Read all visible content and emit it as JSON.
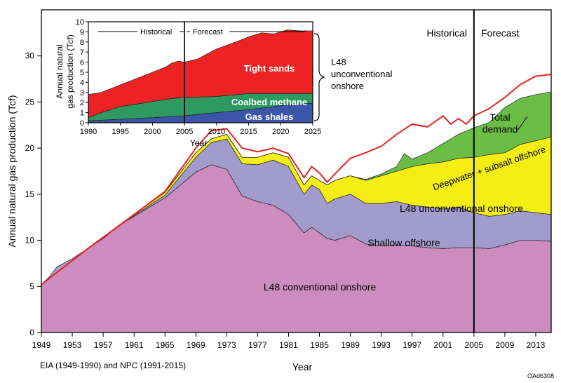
{
  "chart_data": [
    {
      "type": "area",
      "stacked": true,
      "xlabel": "Year",
      "ylabel": "Annual natural gas production (Tcf)",
      "xlim": [
        1949,
        2015
      ],
      "ylim": [
        0,
        35
      ],
      "xticks": [
        1949,
        1953,
        1957,
        1961,
        1965,
        1969,
        1973,
        1977,
        1981,
        1985,
        1989,
        1993,
        1997,
        2001,
        2005,
        2009,
        2013
      ],
      "yticks": [
        0,
        5,
        10,
        15,
        20,
        25,
        30
      ],
      "grid": false,
      "divider_year": 2005,
      "divider_labels": {
        "left": "Historical",
        "right": "Forecast"
      },
      "source_note": "EIA (1949-1990) and NPC (1991-2015)",
      "figure_id": "OAd6308",
      "series": [
        {
          "name": "L48 conventional onshore",
          "color": "#cc8cbf",
          "points": [
            [
              1949,
              5.2
            ],
            [
              1950,
              6.0
            ],
            [
              1951,
              7.1
            ],
            [
              1953,
              8.0
            ],
            [
              1955,
              9.1
            ],
            [
              1957,
              10.2
            ],
            [
              1959,
              11.6
            ],
            [
              1961,
              12.6
            ],
            [
              1963,
              13.6
            ],
            [
              1965,
              14.6
            ],
            [
              1967,
              16.0
            ],
            [
              1969,
              17.4
            ],
            [
              1971,
              18.2
            ],
            [
              1973,
              17.7
            ],
            [
              1975,
              14.8
            ],
            [
              1977,
              14.2
            ],
            [
              1979,
              13.8
            ],
            [
              1981,
              12.8
            ],
            [
              1983,
              10.8
            ],
            [
              1984,
              11.4
            ],
            [
              1985,
              10.8
            ],
            [
              1986,
              10.2
            ],
            [
              1987,
              10.0
            ],
            [
              1989,
              10.5
            ],
            [
              1991,
              9.6
            ],
            [
              1993,
              9.4
            ],
            [
              1995,
              9.5
            ],
            [
              1997,
              9.4
            ],
            [
              1999,
              9.2
            ],
            [
              2001,
              9.1
            ],
            [
              2003,
              9.2
            ],
            [
              2005,
              9.2
            ],
            [
              2007,
              9.1
            ],
            [
              2009,
              9.5
            ],
            [
              2011,
              10.0
            ],
            [
              2013,
              10.0
            ],
            [
              2015,
              9.9
            ]
          ]
        },
        {
          "name": "Shallow offshore",
          "color": "#a29ccc",
          "points": [
            [
              1949,
              5.2
            ],
            [
              1955,
              9.1
            ],
            [
              1961,
              12.7
            ],
            [
              1965,
              14.9
            ],
            [
              1969,
              19.0
            ],
            [
              1971,
              20.6
            ],
            [
              1973,
              21.0
            ],
            [
              1975,
              18.3
            ],
            [
              1977,
              18.2
            ],
            [
              1979,
              18.7
            ],
            [
              1981,
              18.0
            ],
            [
              1983,
              15.0
            ],
            [
              1984,
              16.0
            ],
            [
              1985,
              15.5
            ],
            [
              1986,
              14.0
            ],
            [
              1987,
              14.5
            ],
            [
              1989,
              15.0
            ],
            [
              1991,
              14.0
            ],
            [
              1993,
              14.0
            ],
            [
              1995,
              14.2
            ],
            [
              1997,
              13.8
            ],
            [
              1999,
              13.6
            ],
            [
              2001,
              13.4
            ],
            [
              2003,
              13.6
            ],
            [
              2005,
              13.0
            ],
            [
              2007,
              12.6
            ],
            [
              2009,
              12.8
            ],
            [
              2011,
              13.2
            ],
            [
              2013,
              13.0
            ],
            [
              2015,
              12.8
            ]
          ]
        },
        {
          "name": "L48 unconventional onshore",
          "color": "#f4ee14",
          "points": [
            [
              1949,
              5.2
            ],
            [
              1955,
              9.1
            ],
            [
              1961,
              12.8
            ],
            [
              1965,
              15.2
            ],
            [
              1969,
              19.5
            ],
            [
              1971,
              21.0
            ],
            [
              1973,
              21.5
            ],
            [
              1975,
              19.0
            ],
            [
              1977,
              19.0
            ],
            [
              1979,
              19.5
            ],
            [
              1981,
              19.0
            ],
            [
              1983,
              16.0
            ],
            [
              1984,
              17.0
            ],
            [
              1985,
              16.5
            ],
            [
              1986,
              16.0
            ],
            [
              1987,
              16.5
            ],
            [
              1989,
              17.0
            ],
            [
              1991,
              16.5
            ],
            [
              1993,
              17.0
            ],
            [
              1995,
              17.5
            ],
            [
              1997,
              18.0
            ],
            [
              1999,
              18.3
            ],
            [
              2001,
              18.5
            ],
            [
              2003,
              18.9
            ],
            [
              2005,
              19.0
            ],
            [
              2007,
              19.3
            ],
            [
              2009,
              19.5
            ],
            [
              2011,
              20.4
            ],
            [
              2013,
              20.8
            ],
            [
              2015,
              21.2
            ]
          ]
        },
        {
          "name": "Deepwater + subsalt offshore",
          "color": "#6cbd45",
          "points": [
            [
              1949,
              5.2
            ],
            [
              1955,
              9.1
            ],
            [
              1961,
              12.8
            ],
            [
              1965,
              15.2
            ],
            [
              1969,
              19.5
            ],
            [
              1971,
              21.0
            ],
            [
              1973,
              21.5
            ],
            [
              1975,
              19.0
            ],
            [
              1977,
              19.0
            ],
            [
              1979,
              19.5
            ],
            [
              1981,
              19.0
            ],
            [
              1983,
              16.0
            ],
            [
              1984,
              17.0
            ],
            [
              1985,
              16.5
            ],
            [
              1986,
              16.0
            ],
            [
              1987,
              16.5
            ],
            [
              1989,
              17.0
            ],
            [
              1991,
              16.6
            ],
            [
              1993,
              17.2
            ],
            [
              1995,
              18.0
            ],
            [
              1996,
              19.4
            ],
            [
              1997,
              18.8
            ],
            [
              1999,
              19.5
            ],
            [
              2001,
              20.5
            ],
            [
              2003,
              21.5
            ],
            [
              2005,
              22.2
            ],
            [
              2007,
              22.8
            ],
            [
              2009,
              24.4
            ],
            [
              2011,
              25.4
            ],
            [
              2013,
              25.8
            ],
            [
              2015,
              26.1
            ]
          ]
        }
      ],
      "total_demand": {
        "name": "Total demand",
        "color": "#e8231f",
        "points": [
          [
            1949,
            5.2
          ],
          [
            1955,
            9.1
          ],
          [
            1961,
            12.8
          ],
          [
            1965,
            15.3
          ],
          [
            1969,
            20.0
          ],
          [
            1971,
            21.9
          ],
          [
            1973,
            22.1
          ],
          [
            1975,
            20.0
          ],
          [
            1977,
            19.6
          ],
          [
            1979,
            20.0
          ],
          [
            1981,
            19.4
          ],
          [
            1983,
            16.8
          ],
          [
            1984,
            18.0
          ],
          [
            1985,
            17.3
          ],
          [
            1986,
            16.3
          ],
          [
            1987,
            17.2
          ],
          [
            1989,
            18.9
          ],
          [
            1991,
            19.5
          ],
          [
            1993,
            20.2
          ],
          [
            1995,
            21.5
          ],
          [
            1997,
            22.6
          ],
          [
            1999,
            22.3
          ],
          [
            2001,
            23.5
          ],
          [
            2002,
            22.6
          ],
          [
            2003,
            23.2
          ],
          [
            2004,
            22.6
          ],
          [
            2005,
            23.5
          ],
          [
            2007,
            24.3
          ],
          [
            2009,
            25.5
          ],
          [
            2011,
            26.9
          ],
          [
            2013,
            27.8
          ],
          [
            2015,
            28.0
          ]
        ]
      }
    },
    {
      "type": "area",
      "stacked": true,
      "role": "inset",
      "xlabel": "Year",
      "ylabel": "Annual natural gas production (Tcf)",
      "xlim": [
        1990,
        2025
      ],
      "ylim": [
        0,
        10
      ],
      "xticks": [
        1990,
        1995,
        2000,
        2005,
        2010,
        2015,
        2020,
        2025
      ],
      "yticks": [
        0,
        1,
        2,
        3,
        4,
        5,
        6,
        7,
        8,
        9,
        10
      ],
      "divider_year": 2005,
      "divider_labels": {
        "left": "Historical",
        "right": "Forecast"
      },
      "bracket_label": "L48 unconventional onshore",
      "series": [
        {
          "name": "Gas shales",
          "color": "#3b56a8",
          "points": [
            [
              1990,
              0.2
            ],
            [
              1995,
              0.35
            ],
            [
              2000,
              0.5
            ],
            [
              2005,
              0.7
            ],
            [
              2010,
              1.0
            ],
            [
              2015,
              1.3
            ],
            [
              2020,
              1.7
            ],
            [
              2025,
              1.95
            ]
          ]
        },
        {
          "name": "Coalbed methane",
          "color": "#2e9a62",
          "points": [
            [
              1990,
              0.5
            ],
            [
              1992,
              1.0
            ],
            [
              1995,
              1.6
            ],
            [
              2000,
              2.1
            ],
            [
              2003,
              2.4
            ],
            [
              2005,
              2.5
            ],
            [
              2010,
              2.6
            ],
            [
              2015,
              2.9
            ],
            [
              2020,
              2.9
            ],
            [
              2025,
              2.9
            ]
          ]
        },
        {
          "name": "Tight sands",
          "color": "#ed2224",
          "points": [
            [
              1990,
              2.8
            ],
            [
              1992,
              3.0
            ],
            [
              1994,
              3.5
            ],
            [
              1996,
              4.0
            ],
            [
              1998,
              4.5
            ],
            [
              2000,
              5.0
            ],
            [
              2002,
              5.5
            ],
            [
              2003,
              5.9
            ],
            [
              2004,
              6.1
            ],
            [
              2005,
              6.0
            ],
            [
              2007,
              6.3
            ],
            [
              2010,
              7.3
            ],
            [
              2013,
              8.0
            ],
            [
              2015,
              8.5
            ],
            [
              2017,
              8.9
            ],
            [
              2019,
              8.8
            ],
            [
              2021,
              9.2
            ],
            [
              2023,
              9.1
            ],
            [
              2025,
              9.1
            ]
          ]
        }
      ]
    }
  ]
}
